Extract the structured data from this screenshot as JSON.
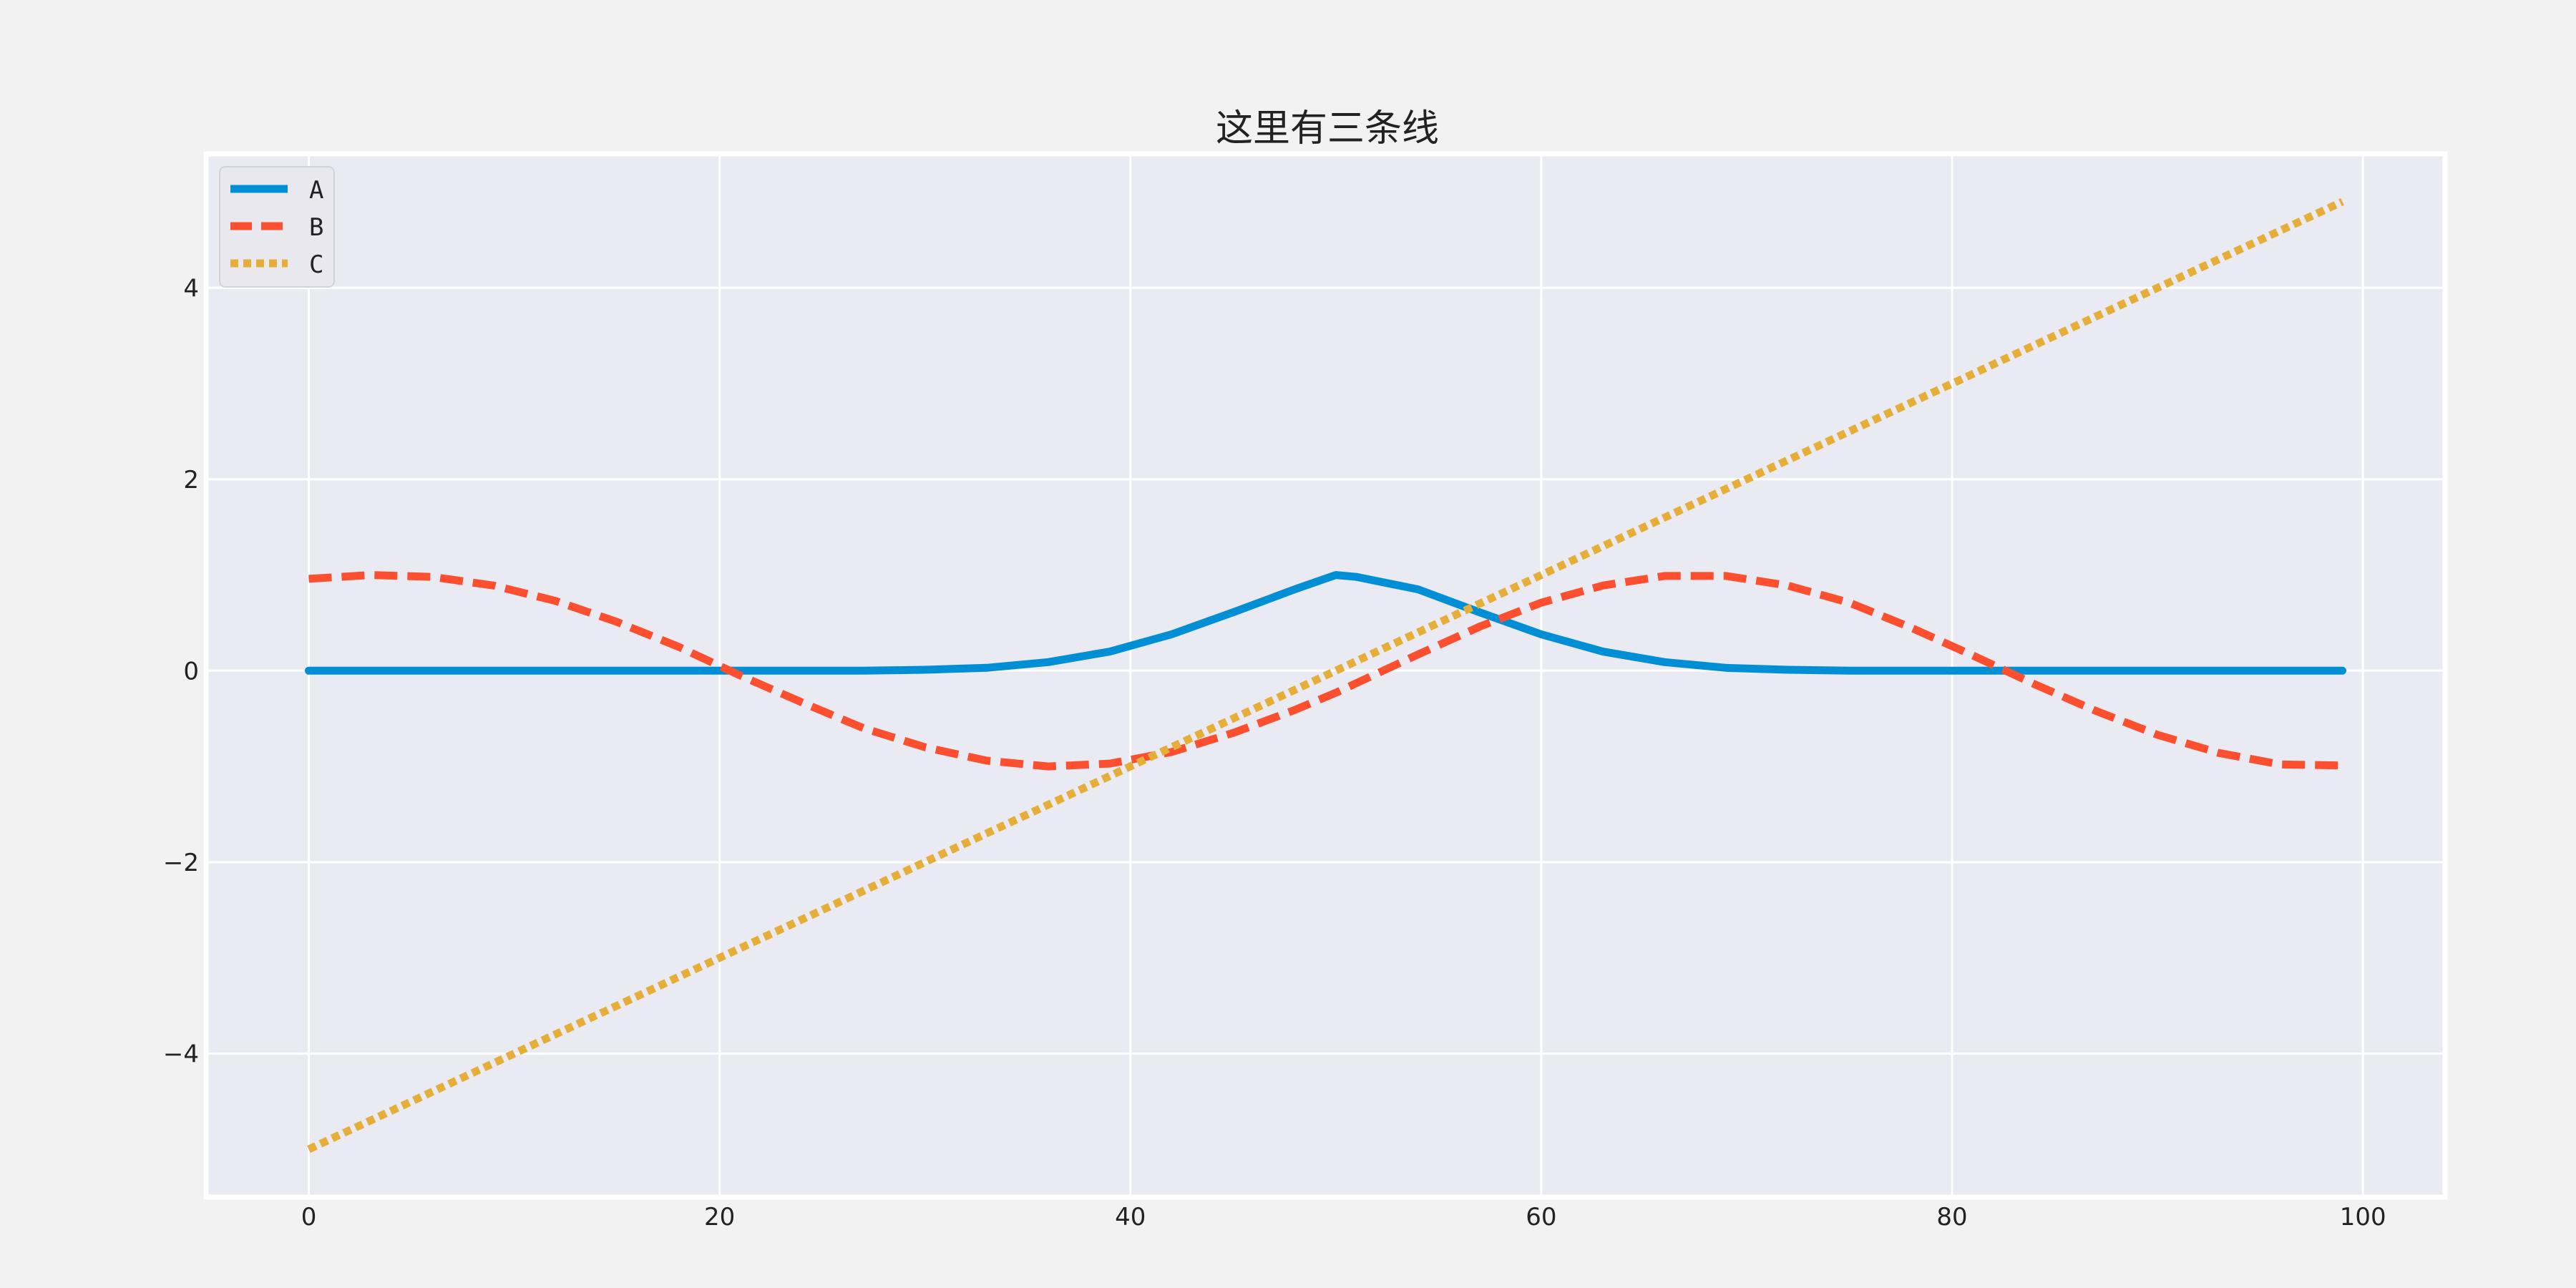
{
  "colors": {
    "figure_bg": "#f2f2f2",
    "axes_bg": "#eaeaf2",
    "grid": "#ffffff",
    "series_A": "#008fd5",
    "series_B": "#fc4f30",
    "series_C": "#e5ae38"
  },
  "chart_data": {
    "type": "line",
    "title": "这里有三条线",
    "xlabel": "",
    "ylabel": "",
    "xlim": [
      -5,
      104
    ],
    "ylim": [
      -5.5,
      5.4
    ],
    "xticks": [
      0,
      20,
      40,
      60,
      80,
      100
    ],
    "xtick_labels": [
      "0",
      "20",
      "40",
      "60",
      "80",
      "100"
    ],
    "yticks": [
      -4,
      -2,
      0,
      2,
      4
    ],
    "ytick_labels": [
      "−4",
      "−2",
      "0",
      "2",
      "4"
    ],
    "grid": true,
    "legend_position": "top-left",
    "x": [
      0,
      3,
      6,
      9,
      12,
      15,
      18,
      21,
      24,
      27,
      30,
      33,
      36,
      39,
      42,
      45,
      48,
      50,
      51,
      54,
      57,
      60,
      63,
      66,
      69,
      72,
      75,
      78,
      81,
      84,
      87,
      90,
      93,
      96,
      99
    ],
    "series": [
      {
        "name": "A",
        "style": "solid",
        "color": "#008fd5",
        "values": [
          0,
          0,
          0,
          0,
          0,
          0,
          0,
          0,
          0,
          0,
          0.01,
          0.03,
          0.09,
          0.2,
          0.38,
          0.61,
          0.85,
          1.0,
          0.98,
          0.85,
          0.61,
          0.38,
          0.2,
          0.09,
          0.03,
          0.01,
          0,
          0,
          0,
          0,
          0,
          0,
          0,
          0,
          0
        ]
      },
      {
        "name": "B",
        "style": "dashed",
        "color": "#fc4f30",
        "values": [
          0.96,
          1.0,
          0.98,
          0.89,
          0.73,
          0.51,
          0.25,
          -0.05,
          -0.33,
          -0.6,
          -0.8,
          -0.94,
          -1.0,
          -0.97,
          -0.85,
          -0.65,
          -0.41,
          -0.23,
          -0.13,
          0.17,
          0.46,
          0.71,
          0.89,
          0.99,
          0.99,
          0.89,
          0.71,
          0.45,
          0.16,
          -0.14,
          -0.42,
          -0.67,
          -0.86,
          -0.98,
          -0.99
        ]
      },
      {
        "name": "C",
        "style": "dotted",
        "color": "#e5ae38",
        "values": [
          -5.0,
          -4.7,
          -4.4,
          -4.1,
          -3.8,
          -3.5,
          -3.2,
          -2.9,
          -2.6,
          -2.3,
          -2.0,
          -1.7,
          -1.4,
          -1.1,
          -0.8,
          -0.5,
          -0.2,
          0.0,
          0.1,
          0.4,
          0.7,
          1.0,
          1.3,
          1.6,
          1.9,
          2.2,
          2.5,
          2.8,
          3.1,
          3.4,
          3.7,
          4.0,
          4.3,
          4.6,
          4.9
        ]
      }
    ]
  }
}
